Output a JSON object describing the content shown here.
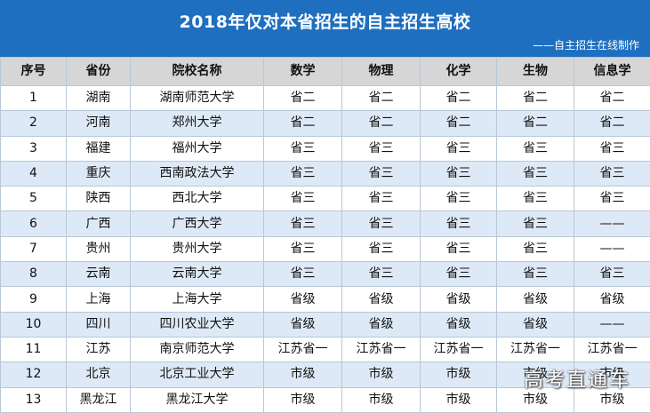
{
  "header": {
    "title": "2018年仅对本省招生的自主招生高校",
    "subtitle": "——自主招生在线制作"
  },
  "table": {
    "columns": [
      "序号",
      "省份",
      "院校名称",
      "数学",
      "物理",
      "化学",
      "生物",
      "信息学"
    ],
    "rows": [
      [
        "1",
        "湖南",
        "湖南师范大学",
        "省二",
        "省二",
        "省二",
        "省二",
        "省二"
      ],
      [
        "2",
        "河南",
        "郑州大学",
        "省二",
        "省二",
        "省二",
        "省二",
        "省二"
      ],
      [
        "3",
        "福建",
        "福州大学",
        "省三",
        "省三",
        "省三",
        "省三",
        "省三"
      ],
      [
        "4",
        "重庆",
        "西南政法大学",
        "省三",
        "省三",
        "省三",
        "省三",
        "省三"
      ],
      [
        "5",
        "陕西",
        "西北大学",
        "省三",
        "省三",
        "省三",
        "省三",
        "省三"
      ],
      [
        "6",
        "广西",
        "广西大学",
        "省三",
        "省三",
        "省三",
        "省三",
        "——"
      ],
      [
        "7",
        "贵州",
        "贵州大学",
        "省三",
        "省三",
        "省三",
        "省三",
        "——"
      ],
      [
        "8",
        "云南",
        "云南大学",
        "省三",
        "省三",
        "省三",
        "省三",
        "省三"
      ],
      [
        "9",
        "上海",
        "上海大学",
        "省级",
        "省级",
        "省级",
        "省级",
        "省级"
      ],
      [
        "10",
        "四川",
        "四川农业大学",
        "省级",
        "省级",
        "省级",
        "省级",
        "——"
      ],
      [
        "11",
        "江苏",
        "南京师范大学",
        "江苏省一",
        "江苏省一",
        "江苏省一",
        "江苏省一",
        "江苏省一"
      ],
      [
        "12",
        "北京",
        "北京工业大学",
        "市级",
        "市级",
        "市级",
        "市级",
        "市级"
      ],
      [
        "13",
        "黑龙江",
        "黑龙江大学",
        "市级",
        "市级",
        "市级",
        "市级",
        "市级"
      ]
    ]
  },
  "watermark": "高考直通车"
}
